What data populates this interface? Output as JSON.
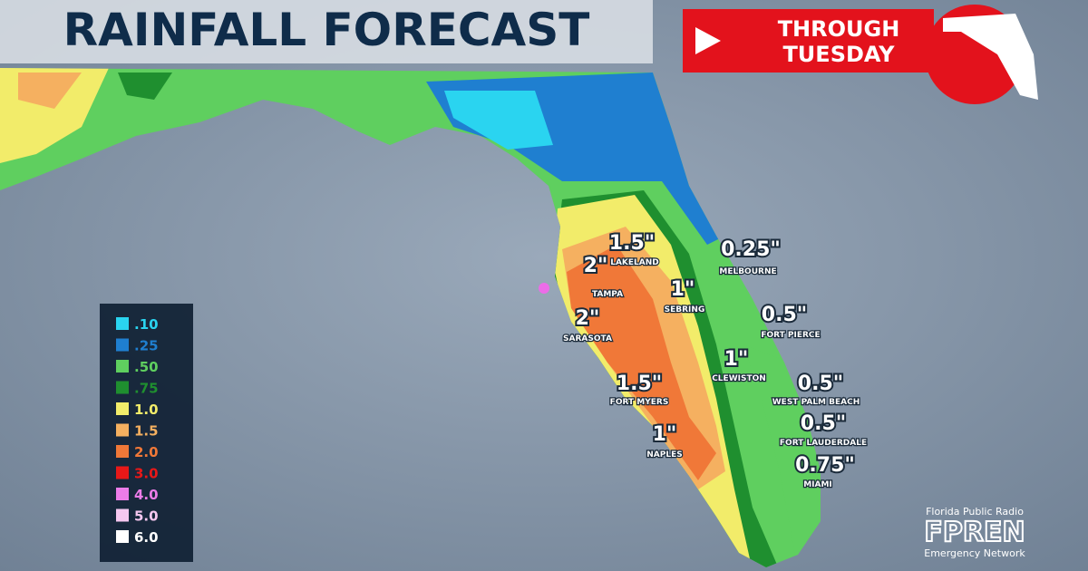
{
  "header": {
    "title": "RAINFALL FORECAST",
    "badge_line1": "THROUGH",
    "badge_line2": "TUESDAY"
  },
  "legend": [
    {
      "label": ".10",
      "color": "#2ad4f0"
    },
    {
      "label": ".25",
      "color": "#1f7fd0"
    },
    {
      "label": ".50",
      "color": "#5fcf5f"
    },
    {
      "label": ".75",
      "color": "#1f8f2f"
    },
    {
      "label": "1.0",
      "color": "#f2ec6a"
    },
    {
      "label": "1.5",
      "color": "#f5b060"
    },
    {
      "label": "2.0",
      "color": "#f07838"
    },
    {
      "label": "3.0",
      "color": "#e81818"
    },
    {
      "label": "4.0",
      "color": "#ec7ce8"
    },
    {
      "label": "5.0",
      "color": "#f6c8f0"
    },
    {
      "label": "6.0",
      "color": "#ffffff"
    }
  ],
  "labels": [
    {
      "amount": "2\"",
      "city": "TAMPA"
    },
    {
      "amount": "1.5\"",
      "city": "LAKELAND"
    },
    {
      "amount": "0.25\"",
      "city": "MELBOURNE"
    },
    {
      "amount": "1\"",
      "city": "SEBRING"
    },
    {
      "amount": "2\"",
      "city": "SARASOTA"
    },
    {
      "amount": "0.5\"",
      "city": "FORT PIERCE"
    },
    {
      "amount": "1\"",
      "city": "CLEWISTON"
    },
    {
      "amount": "1.5\"",
      "city": "FORT MYERS"
    },
    {
      "amount": "0.5\"",
      "city": "WEST PALM BEACH"
    },
    {
      "amount": "0.5\"",
      "city": "FORT LAUDERDALE"
    },
    {
      "amount": "1\"",
      "city": "NAPLES"
    },
    {
      "amount": "0.75\"",
      "city": "MIAMI"
    }
  ],
  "logo": {
    "top": "Florida Public Radio",
    "name": "FPREN",
    "bottom": "Emergency Network"
  }
}
